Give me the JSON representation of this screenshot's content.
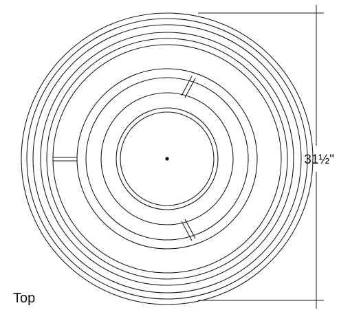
{
  "diagram": {
    "view_label": "Top",
    "dimension_label": "31½\"",
    "line_color": "#1a1a1a",
    "background_color": "#ffffff"
  }
}
